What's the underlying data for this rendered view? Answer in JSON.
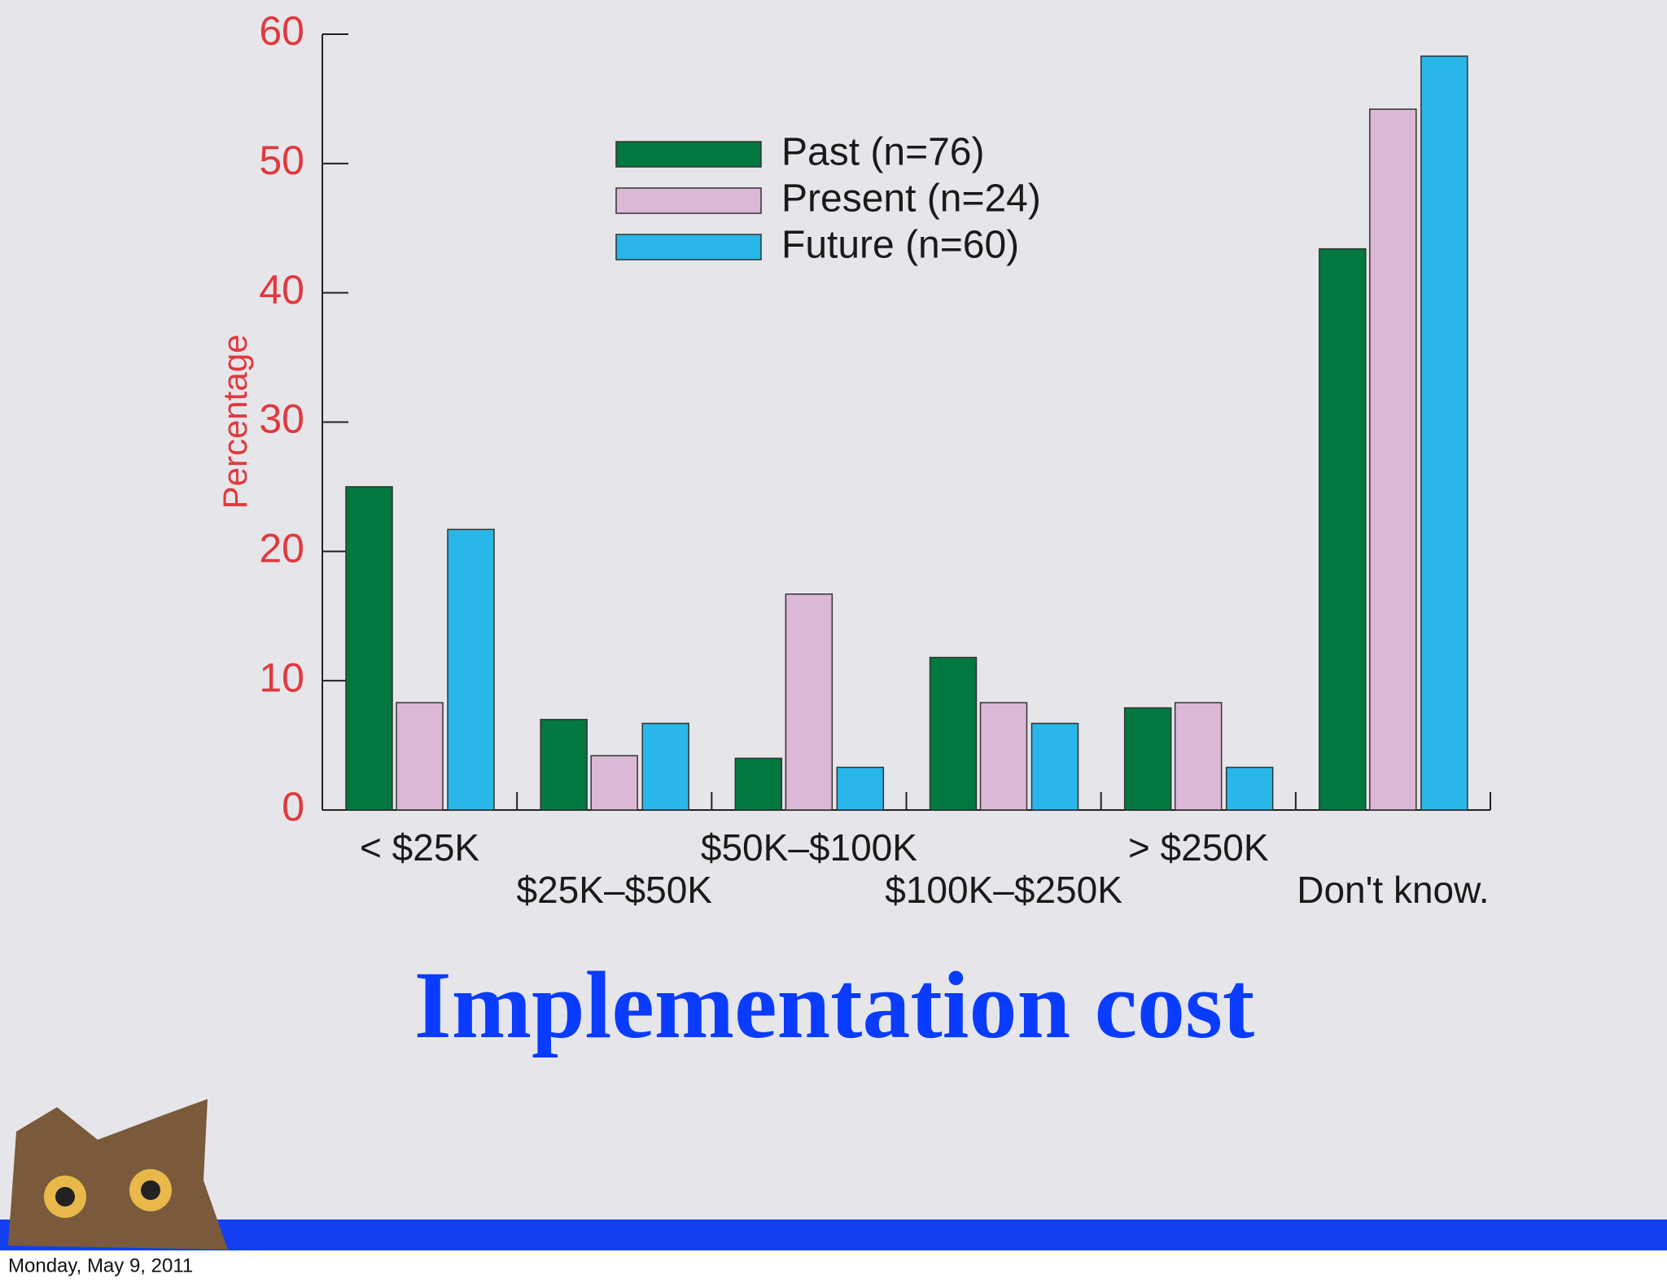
{
  "chart_data": {
    "type": "bar",
    "title": "Implementation cost",
    "y_label": "Percentage",
    "categories": [
      "< $25K",
      "$25K–$50K",
      "$50K–$100K",
      "$100K–$250K",
      "> $250K",
      "Don't know."
    ],
    "series": [
      {
        "name": "Past (n=76)",
        "color": "#00783f",
        "values": [
          25,
          7,
          4,
          11.8,
          7.9,
          43.4
        ]
      },
      {
        "name": "Present (n=24)",
        "color": "#dbb8d6",
        "values": [
          8.3,
          4.2,
          16.7,
          8.3,
          8.3,
          54.2
        ]
      },
      {
        "name": "Future (n=60)",
        "color": "#29b6e8",
        "values": [
          21.7,
          6.7,
          3.3,
          6.7,
          3.3,
          58.3
        ]
      }
    ],
    "ylim": [
      0,
      60
    ],
    "yticks": [
      0,
      10,
      20,
      30,
      40,
      50,
      60
    ]
  },
  "footer": {
    "date": "Monday, May 9, 2011"
  }
}
